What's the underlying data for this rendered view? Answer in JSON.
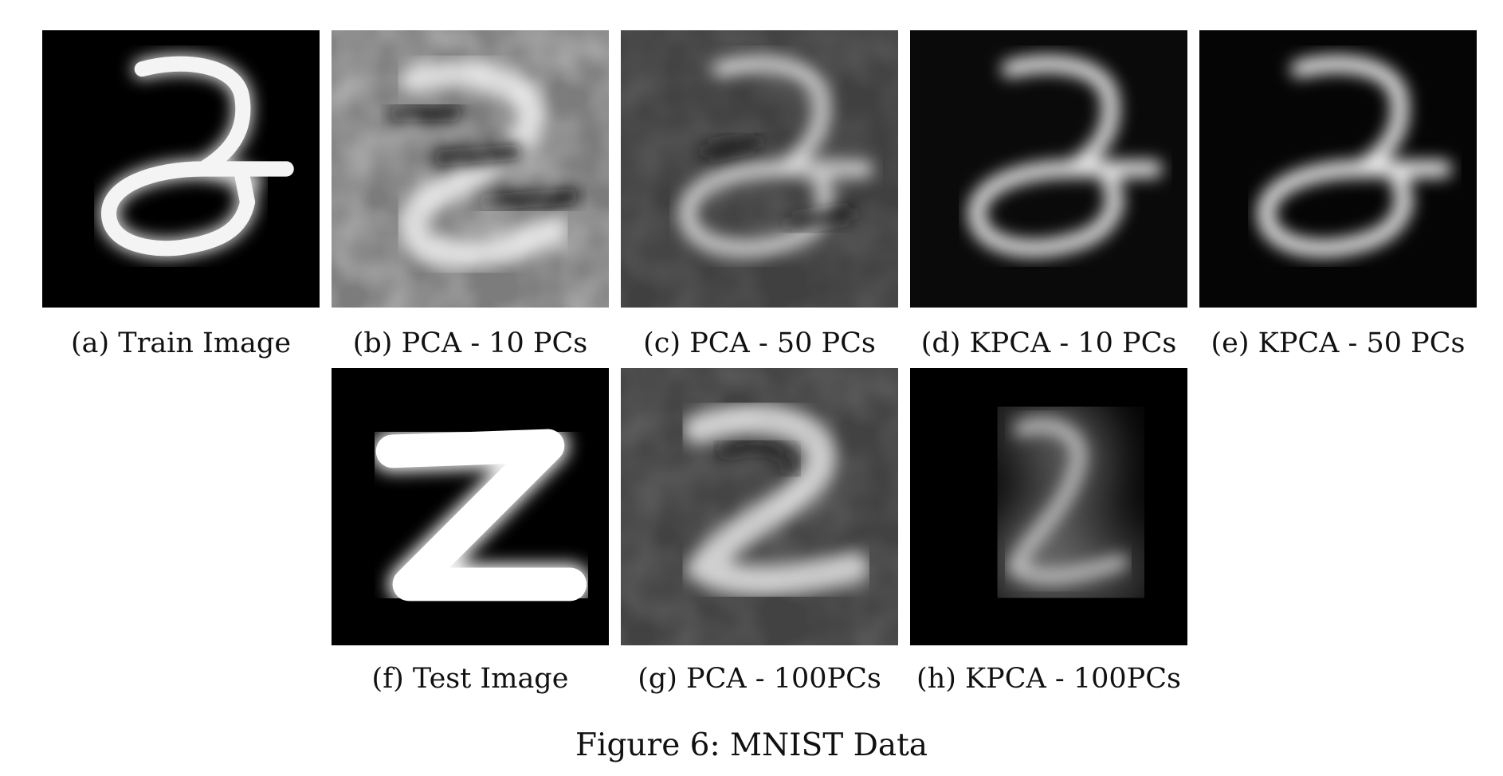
{
  "figure": {
    "caption": "Figure 6: MNIST Data",
    "dataset": "MNIST",
    "panels": [
      {
        "label": "(a) Train Image",
        "kind": "train"
      },
      {
        "label": "(b) PCA - 10 PCs",
        "kind": "pca10"
      },
      {
        "label": "(c) PCA - 50 PCs",
        "kind": "pca50"
      },
      {
        "label": "(d) KPCA - 10 PCs",
        "kind": "kpca10"
      },
      {
        "label": "(e) KPCA - 50 PCs",
        "kind": "kpca50"
      },
      {
        "label": "(f) Test Image",
        "kind": "test"
      },
      {
        "label": "(g) PCA - 100PCs",
        "kind": "pca100"
      },
      {
        "label": "(h) KPCA - 100PCs",
        "kind": "kpca100"
      }
    ]
  }
}
